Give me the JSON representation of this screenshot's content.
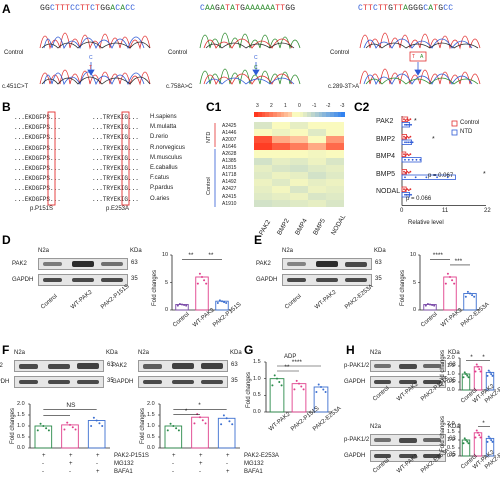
{
  "panels": {
    "A": {
      "label": "A",
      "sequences": [
        {
          "text": "GGCTTTCCTTCTGGACACC",
          "colors": [
            "#2a2a2a",
            "#2a2a2a",
            "#2f5bd6",
            "#e23030",
            "#e23030",
            "#e23030",
            "#2f5bd6",
            "#2f5bd6",
            "#e23030",
            "#e23030",
            "#2f5bd6",
            "#e23030",
            "#2a2a2a",
            "#2a2a2a",
            "#2a8a2a",
            "#2f5bd6",
            "#2a8a2a",
            "#2f5bd6",
            "#2f5bd6"
          ]
        },
        {
          "text": "CAAGATATGAAAAAATTGG",
          "colors": [
            "#2f5bd6",
            "#2a8a2a",
            "#2a8a2a",
            "#2a2a2a",
            "#2a8a2a",
            "#e23030",
            "#2a8a2a",
            "#e23030",
            "#2a2a2a",
            "#2a8a2a",
            "#2a8a2a",
            "#2a8a2a",
            "#2a8a2a",
            "#2a8a2a",
            "#2a8a2a",
            "#e23030",
            "#e23030",
            "#2a2a2a",
            "#2a2a2a"
          ]
        },
        {
          "text": "CTTCTTGTTAGGGCATGCC",
          "colors": [
            "#2f5bd6",
            "#e23030",
            "#e23030",
            "#2f5bd6",
            "#e23030",
            "#e23030",
            "#2a2a2a",
            "#e23030",
            "#e23030",
            "#2a8a2a",
            "#2a2a2a",
            "#2a2a2a",
            "#2a2a2a",
            "#2f5bd6",
            "#2a8a2a",
            "#e23030",
            "#2a2a2a",
            "#2f5bd6",
            "#2f5bd6"
          ]
        }
      ],
      "row_labels": [
        "Control",
        "Control",
        "Control"
      ],
      "mutations": [
        "c.451C>T",
        "c.758A>C",
        "c.289-3T>A"
      ],
      "mut_bases": [
        "C",
        "C",
        "T"
      ],
      "arrow_letters": [
        "T",
        "C",
        "A"
      ]
    },
    "B": {
      "label": "B",
      "rows": [
        {
          "left": "...EKDGFPS...",
          "right": "...TRYEKIG...",
          "species": "H.sapiens"
        },
        {
          "left": "...EKDGFPS...",
          "right": "...TRYEKIG...",
          "species": "M.mulatta"
        },
        {
          "left": "...EKDGFPS...",
          "right": "...TRYEKIG...",
          "species": "D.rerio"
        },
        {
          "left": "...EKDGFPS...",
          "right": "...TRYEKIG...",
          "species": "R.norvegicus"
        },
        {
          "left": "...EKDGFPS...",
          "right": "...TRYEKIG...",
          "species": "M.musculus"
        },
        {
          "left": "...EKDGFPS...",
          "right": "...TRYEKIG...",
          "species": "E.caballus"
        },
        {
          "left": "...EKDGFPS...",
          "right": "...TRYEKIG...",
          "species": "F.catus"
        },
        {
          "left": "...EKDGFPS...",
          "right": "...TRYEKIG...",
          "species": "P.pardus"
        },
        {
          "left": "...EKDGFPS...",
          "right": "...TRYEKIG...",
          "species": "O.aries"
        }
      ],
      "site_labels": [
        "p.P151S",
        "p.E253A"
      ]
    },
    "C1": {
      "label": "C1",
      "scale_ticks": [
        "3",
        "2",
        "1",
        "0",
        "-1",
        "-2",
        "-3"
      ],
      "group_labels": [
        "NTD",
        "Control"
      ],
      "samples": [
        "A2425",
        "A1446",
        "A2007",
        "A1646",
        "A2628",
        "A1385",
        "A1815",
        "A1718",
        "A1492",
        "A2427",
        "A2415",
        "A1910"
      ],
      "genes": [
        "PAK2",
        "BMP2",
        "BMP4",
        "BMP5",
        "NODAL"
      ],
      "matrix": [
        [
          -0.5,
          0.2,
          -0.3,
          0.4,
          0.1
        ],
        [
          0.6,
          -0.2,
          0.1,
          -0.4,
          0.3
        ],
        [
          2.6,
          1.2,
          0.8,
          0.6,
          1.5
        ],
        [
          2.9,
          2.4,
          1.9,
          1.2,
          2.2
        ],
        [
          0.0,
          0.2,
          0.1,
          -0.1,
          0.0
        ],
        [
          -0.6,
          -0.3,
          -0.4,
          -0.2,
          -0.5
        ],
        [
          -0.3,
          -0.5,
          -0.6,
          -0.4,
          -0.3
        ],
        [
          -0.4,
          -0.2,
          -0.3,
          -0.6,
          -0.4
        ],
        [
          -0.2,
          -0.4,
          -0.1,
          -0.3,
          -0.2
        ],
        [
          -0.3,
          -0.1,
          -0.5,
          -0.2,
          -0.3
        ],
        [
          -0.4,
          -0.3,
          -0.2,
          -0.5,
          -0.4
        ],
        [
          -0.6,
          -0.5,
          -0.4,
          -0.3,
          -0.5
        ]
      ]
    },
    "C2": {
      "label": "C2",
      "legend": [
        "Control",
        "NTD"
      ],
      "xlabel": "Relative level",
      "ticks": [
        "0",
        "11",
        "22"
      ],
      "genes": [
        "PAK2",
        "BMP2",
        "BMP4",
        "BMP5",
        "NODAL"
      ],
      "p_values": [
        "p = 0.067",
        "p = 0.066"
      ]
    },
    "D": {
      "label": "D",
      "cell": "N2a",
      "kda": "KDa",
      "blot_rows": [
        "PAK2",
        "GAPDH"
      ],
      "mw": [
        "63",
        "35"
      ],
      "lanes": [
        "Control",
        "WT-PAK2",
        "PAK2-P151S"
      ],
      "ylabel": "Fold changes",
      "yticks": [
        "0",
        "5",
        "10"
      ],
      "sig": [
        "**",
        "**"
      ]
    },
    "E": {
      "label": "E",
      "cell": "N2a",
      "kda": "KDa",
      "blot_rows": [
        "PAK2",
        "GAPDH"
      ],
      "mw": [
        "63",
        "35"
      ],
      "lanes": [
        "Control",
        "WT-PAK2",
        "PAK2-E253A"
      ],
      "ylabel": "Fold changes",
      "yticks": [
        "0",
        "5",
        "10"
      ],
      "sig": [
        "****",
        "***"
      ]
    },
    "F": {
      "label": "F",
      "cell": "N2a",
      "kda": "KDa",
      "blot_rows": [
        "PAK2",
        "GAPDH"
      ],
      "mw": [
        "63",
        "35"
      ],
      "ylabel": "Fold changes",
      "yticks": [
        "0.0",
        "0.5",
        "1.0",
        "1.5",
        "2.0"
      ],
      "sig_left": "NS",
      "sig_right": "*",
      "treat_left": [
        "PAK2-P151S",
        "MG132",
        "BAFA1"
      ],
      "treat_right": [
        "PAK2-E253A",
        "MG132",
        "BAFA1"
      ],
      "treat_marks": [
        [
          "+",
          "+",
          "+"
        ],
        [
          "-",
          "+",
          "-"
        ],
        [
          "-",
          "-",
          "+"
        ]
      ]
    },
    "G": {
      "label": "G",
      "title": "ADP",
      "ylabel": "Fold changes",
      "yticks": [
        "0.0",
        "0.5",
        "1.0",
        "1.5"
      ],
      "lanes": [
        "WT-PAK2",
        "PAK2-P151S",
        "PAK2-E253A"
      ],
      "sig": [
        "**",
        "****"
      ]
    },
    "H": {
      "label": "H",
      "cell": "N2a",
      "kda": "KDa",
      "blot_rows": [
        "p-PAK1/2",
        "GAPDH"
      ],
      "mw": [
        "63",
        "35"
      ],
      "lanes_top": [
        "Control",
        "WT-PAK2",
        "PAK2-P151S"
      ],
      "lanes_bottom": [
        "Control",
        "WT-PAK2",
        "PAK2-E253A"
      ],
      "ylabel": "Fold changes",
      "yticks": [
        "0.0",
        "0.5",
        "1.0",
        "1.5",
        "2.0"
      ],
      "sig_top": [
        "*",
        "*"
      ],
      "sig_bottom": [
        "*"
      ]
    }
  },
  "chart_data": [
    {
      "type": "bar",
      "title": "",
      "categories": [
        "Control",
        "WT-PAK2",
        "PAK2-P151S"
      ],
      "values": [
        1.0,
        6.0,
        1.6
      ],
      "ylabel": "Fold changes",
      "ylim": [
        0,
        10
      ]
    },
    {
      "type": "bar",
      "title": "",
      "categories": [
        "Control",
        "WT-PAK2",
        "PAK2-E253A"
      ],
      "values": [
        1.0,
        6.0,
        3.0
      ],
      "ylabel": "Fold changes",
      "ylim": [
        0,
        10
      ]
    },
    {
      "type": "bar",
      "title": "",
      "categories": [
        "PAK2-P151S",
        "PAK2-P151S+MG132",
        "PAK2-P151S+BAFA1"
      ],
      "values": [
        1.0,
        1.05,
        1.25
      ],
      "ylabel": "Fold changes",
      "ylim": [
        0,
        2
      ]
    },
    {
      "type": "bar",
      "title": "",
      "categories": [
        "PAK2-E253A",
        "PAK2-E253A+MG132",
        "PAK2-E253A+BAFA1"
      ],
      "values": [
        1.0,
        1.4,
        1.35
      ],
      "ylabel": "Fold changes",
      "ylim": [
        0,
        2
      ]
    },
    {
      "type": "bar",
      "title": "ADP",
      "categories": [
        "WT-PAK2",
        "PAK2-P151S",
        "PAK2-E253A"
      ],
      "values": [
        1.0,
        0.85,
        0.75
      ],
      "ylabel": "Fold changes",
      "ylim": [
        0,
        1.5
      ]
    },
    {
      "type": "bar",
      "title": "",
      "categories": [
        "Control",
        "WT-PAK2",
        "PAK2-P151S"
      ],
      "values": [
        1.0,
        1.45,
        1.1
      ],
      "ylabel": "Fold changes",
      "ylim": [
        0,
        2
      ]
    },
    {
      "type": "bar",
      "title": "",
      "categories": [
        "Control",
        "WT-PAK2",
        "PAK2-E253A"
      ],
      "values": [
        1.0,
        1.45,
        1.1
      ],
      "ylabel": "Fold changes",
      "ylim": [
        0,
        2
      ]
    },
    {
      "type": "bar",
      "title": "",
      "categories": [
        "PAK2",
        "BMP2",
        "BMP4",
        "BMP5",
        "NODAL"
      ],
      "series": [
        {
          "name": "Control",
          "values": [
            1.5,
            1.2,
            1.0,
            1.2,
            1.1
          ]
        },
        {
          "name": "NTD",
          "values": [
            2.0,
            2.5,
            5.0,
            14.0,
            2.0
          ]
        }
      ],
      "xlabel": "Relative level",
      "ylim": [
        0,
        22
      ]
    }
  ]
}
